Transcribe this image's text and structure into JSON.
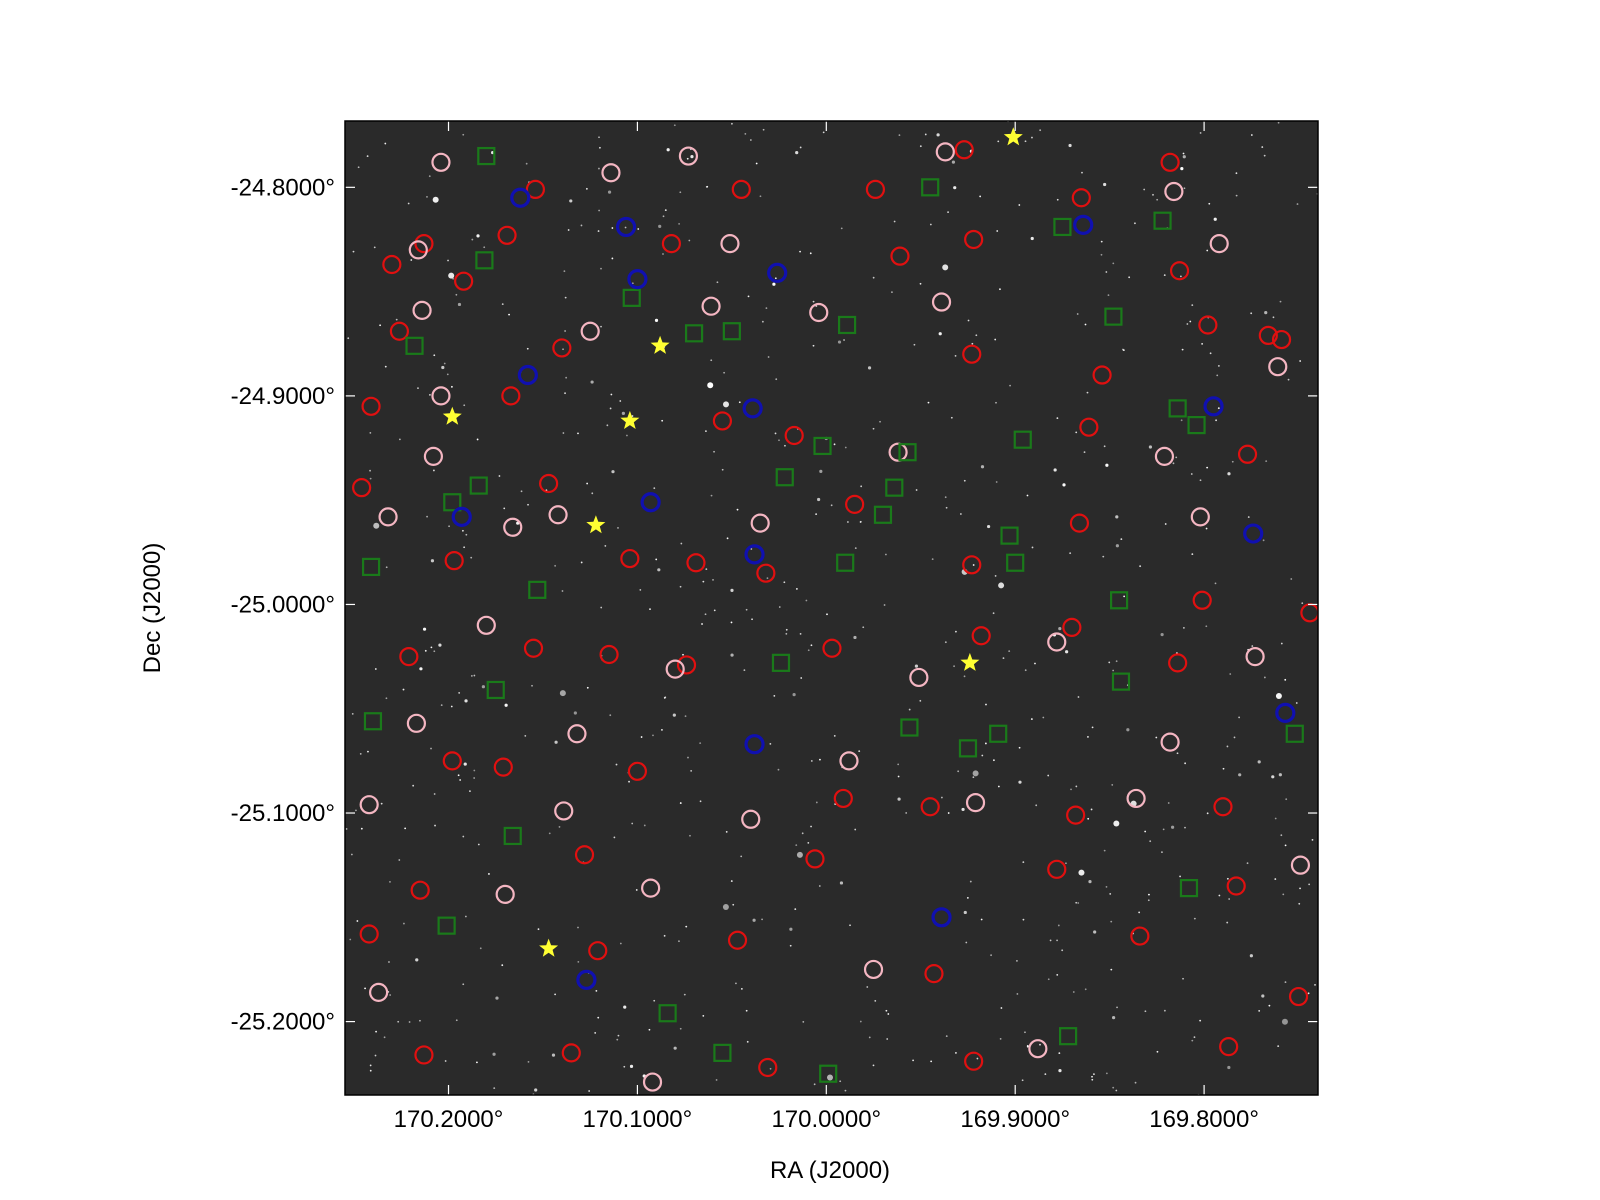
{
  "chart_data": {
    "type": "scatter",
    "xlabel": "RA (J2000)",
    "ylabel": "Dec (J2000)",
    "xlim": [
      170.2548,
      169.7397
    ],
    "ylim": [
      -25.2352,
      -24.7682
    ],
    "xticks": [
      {
        "value": 170.2,
        "label": "170.2000°"
      },
      {
        "value": 170.1,
        "label": "170.1000°"
      },
      {
        "value": 170.0,
        "label": "170.0000°"
      },
      {
        "value": 169.9,
        "label": "169.9000°"
      },
      {
        "value": 169.8,
        "label": "169.8000°"
      }
    ],
    "yticks": [
      {
        "value": -24.8,
        "label": "-24.8000°"
      },
      {
        "value": -24.9,
        "label": "-24.9000°"
      },
      {
        "value": -25.0,
        "label": "-25.0000°"
      },
      {
        "value": -25.1,
        "label": "-25.1000°"
      },
      {
        "value": -25.2,
        "label": "-25.2000°"
      }
    ],
    "series": [
      {
        "color": "#e01010",
        "marker": "circle",
        "x": [
          170.23,
          170.213,
          170.192,
          170.154,
          170.169,
          170.14,
          170.226,
          170.045,
          170.082,
          169.974,
          169.927,
          169.961,
          169.922,
          169.865,
          169.818,
          169.813,
          169.798,
          169.759,
          169.923,
          169.854,
          170.241,
          170.167,
          170.055,
          170.017,
          169.861,
          169.777,
          169.766,
          170.246,
          170.197,
          170.147,
          170.104,
          170.069,
          170.032,
          169.985,
          169.923,
          169.866,
          169.801,
          169.744,
          170.221,
          170.155,
          170.115,
          170.074,
          169.997,
          169.918,
          169.87,
          169.814,
          170.198,
          170.171,
          170.1,
          169.991,
          169.945,
          169.868,
          169.79,
          170.215,
          170.128,
          170.006,
          169.878,
          169.783,
          170.242,
          170.121,
          170.047,
          169.943,
          169.834,
          169.75,
          170.213,
          170.135,
          170.031,
          169.922,
          169.787
        ],
        "y": [
          -24.837,
          -24.827,
          -24.845,
          -24.801,
          -24.823,
          -24.877,
          -24.869,
          -24.801,
          -24.827,
          -24.801,
          -24.782,
          -24.833,
          -24.825,
          -24.805,
          -24.788,
          -24.84,
          -24.866,
          -24.873,
          -24.88,
          -24.89,
          -24.905,
          -24.9,
          -24.912,
          -24.919,
          -24.915,
          -24.928,
          -24.871,
          -24.944,
          -24.979,
          -24.942,
          -24.978,
          -24.98,
          -24.985,
          -24.952,
          -24.981,
          -24.961,
          -24.998,
          -25.004,
          -25.025,
          -25.021,
          -25.024,
          -25.029,
          -25.021,
          -25.015,
          -25.011,
          -25.028,
          -25.075,
          -25.078,
          -25.08,
          -25.093,
          -25.097,
          -25.101,
          -25.097,
          -25.137,
          -25.12,
          -25.122,
          -25.127,
          -25.135,
          -25.158,
          -25.166,
          -25.161,
          -25.177,
          -25.159,
          -25.188,
          -25.216,
          -25.215,
          -25.222,
          -25.219,
          -25.212
        ]
      },
      {
        "color": "#f4b6c2",
        "marker": "circle",
        "x": [
          170.204,
          170.216,
          170.214,
          170.125,
          170.114,
          170.073,
          170.051,
          170.061,
          170.004,
          169.937,
          169.939,
          169.816,
          169.792,
          169.761,
          170.204,
          170.208,
          170.232,
          170.166,
          170.142,
          170.035,
          169.962,
          169.821,
          169.802,
          170.18,
          170.08,
          169.951,
          169.878,
          169.773,
          170.217,
          170.132,
          169.988,
          169.818,
          170.242,
          170.139,
          170.04,
          169.921,
          169.836,
          169.749,
          170.17,
          170.093,
          170.237,
          169.975,
          169.888,
          170.092
        ],
        "y": [
          -24.788,
          -24.83,
          -24.859,
          -24.869,
          -24.793,
          -24.785,
          -24.827,
          -24.857,
          -24.86,
          -24.783,
          -24.855,
          -24.802,
          -24.827,
          -24.886,
          -24.9,
          -24.929,
          -24.958,
          -24.963,
          -24.957,
          -24.961,
          -24.927,
          -24.929,
          -24.958,
          -25.01,
          -25.031,
          -25.035,
          -25.018,
          -25.025,
          -25.057,
          -25.062,
          -25.075,
          -25.066,
          -25.096,
          -25.099,
          -25.103,
          -25.095,
          -25.093,
          -25.125,
          -25.139,
          -25.136,
          -25.186,
          -25.175,
          -25.213,
          -25.229
        ]
      },
      {
        "color": "#1a7a1a",
        "marker": "square",
        "x": [
          170.18,
          169.945,
          169.875,
          169.822,
          170.181,
          170.103,
          170.07,
          170.05,
          169.989,
          170.218,
          169.848,
          169.814,
          169.804,
          169.896,
          170.002,
          169.957,
          170.022,
          169.964,
          169.97,
          170.198,
          170.184,
          169.903,
          169.9,
          170.241,
          170.153,
          169.99,
          169.845,
          169.844,
          170.024,
          170.175,
          170.24,
          169.956,
          169.909,
          169.925,
          169.752,
          170.166,
          169.808,
          170.201,
          170.084,
          170.055,
          169.872,
          169.999
        ],
        "y": [
          -24.785,
          -24.8,
          -24.819,
          -24.816,
          -24.835,
          -24.853,
          -24.87,
          -24.869,
          -24.866,
          -24.876,
          -24.862,
          -24.906,
          -24.914,
          -24.921,
          -24.924,
          -24.927,
          -24.939,
          -24.944,
          -24.957,
          -24.951,
          -24.943,
          -24.967,
          -24.98,
          -24.982,
          -24.993,
          -24.98,
          -24.998,
          -25.037,
          -25.028,
          -25.041,
          -25.056,
          -25.059,
          -25.062,
          -25.069,
          -25.062,
          -25.111,
          -25.136,
          -25.154,
          -25.196,
          -25.215,
          -25.207,
          -25.225
        ]
      },
      {
        "color": "#1010b0",
        "marker": "circle",
        "x": [
          170.162,
          170.106,
          170.1,
          170.026,
          170.158,
          170.039,
          170.193,
          170.093,
          170.038,
          170.038,
          169.864,
          169.795,
          169.774,
          169.757,
          169.939,
          170.127
        ],
        "y": [
          -24.805,
          -24.819,
          -24.844,
          -24.841,
          -24.89,
          -24.906,
          -24.958,
          -24.951,
          -24.976,
          -25.067,
          -24.818,
          -24.905,
          -24.966,
          -25.052,
          -25.15,
          -25.18
        ]
      },
      {
        "color": "#ffff33",
        "marker": "star",
        "x": [
          170.198,
          170.104,
          170.088,
          170.122,
          169.924,
          170.147,
          169.901
        ],
        "y": [
          -24.91,
          -24.912,
          -24.876,
          -24.962,
          -25.028,
          -25.165,
          -24.776
        ]
      }
    ]
  }
}
